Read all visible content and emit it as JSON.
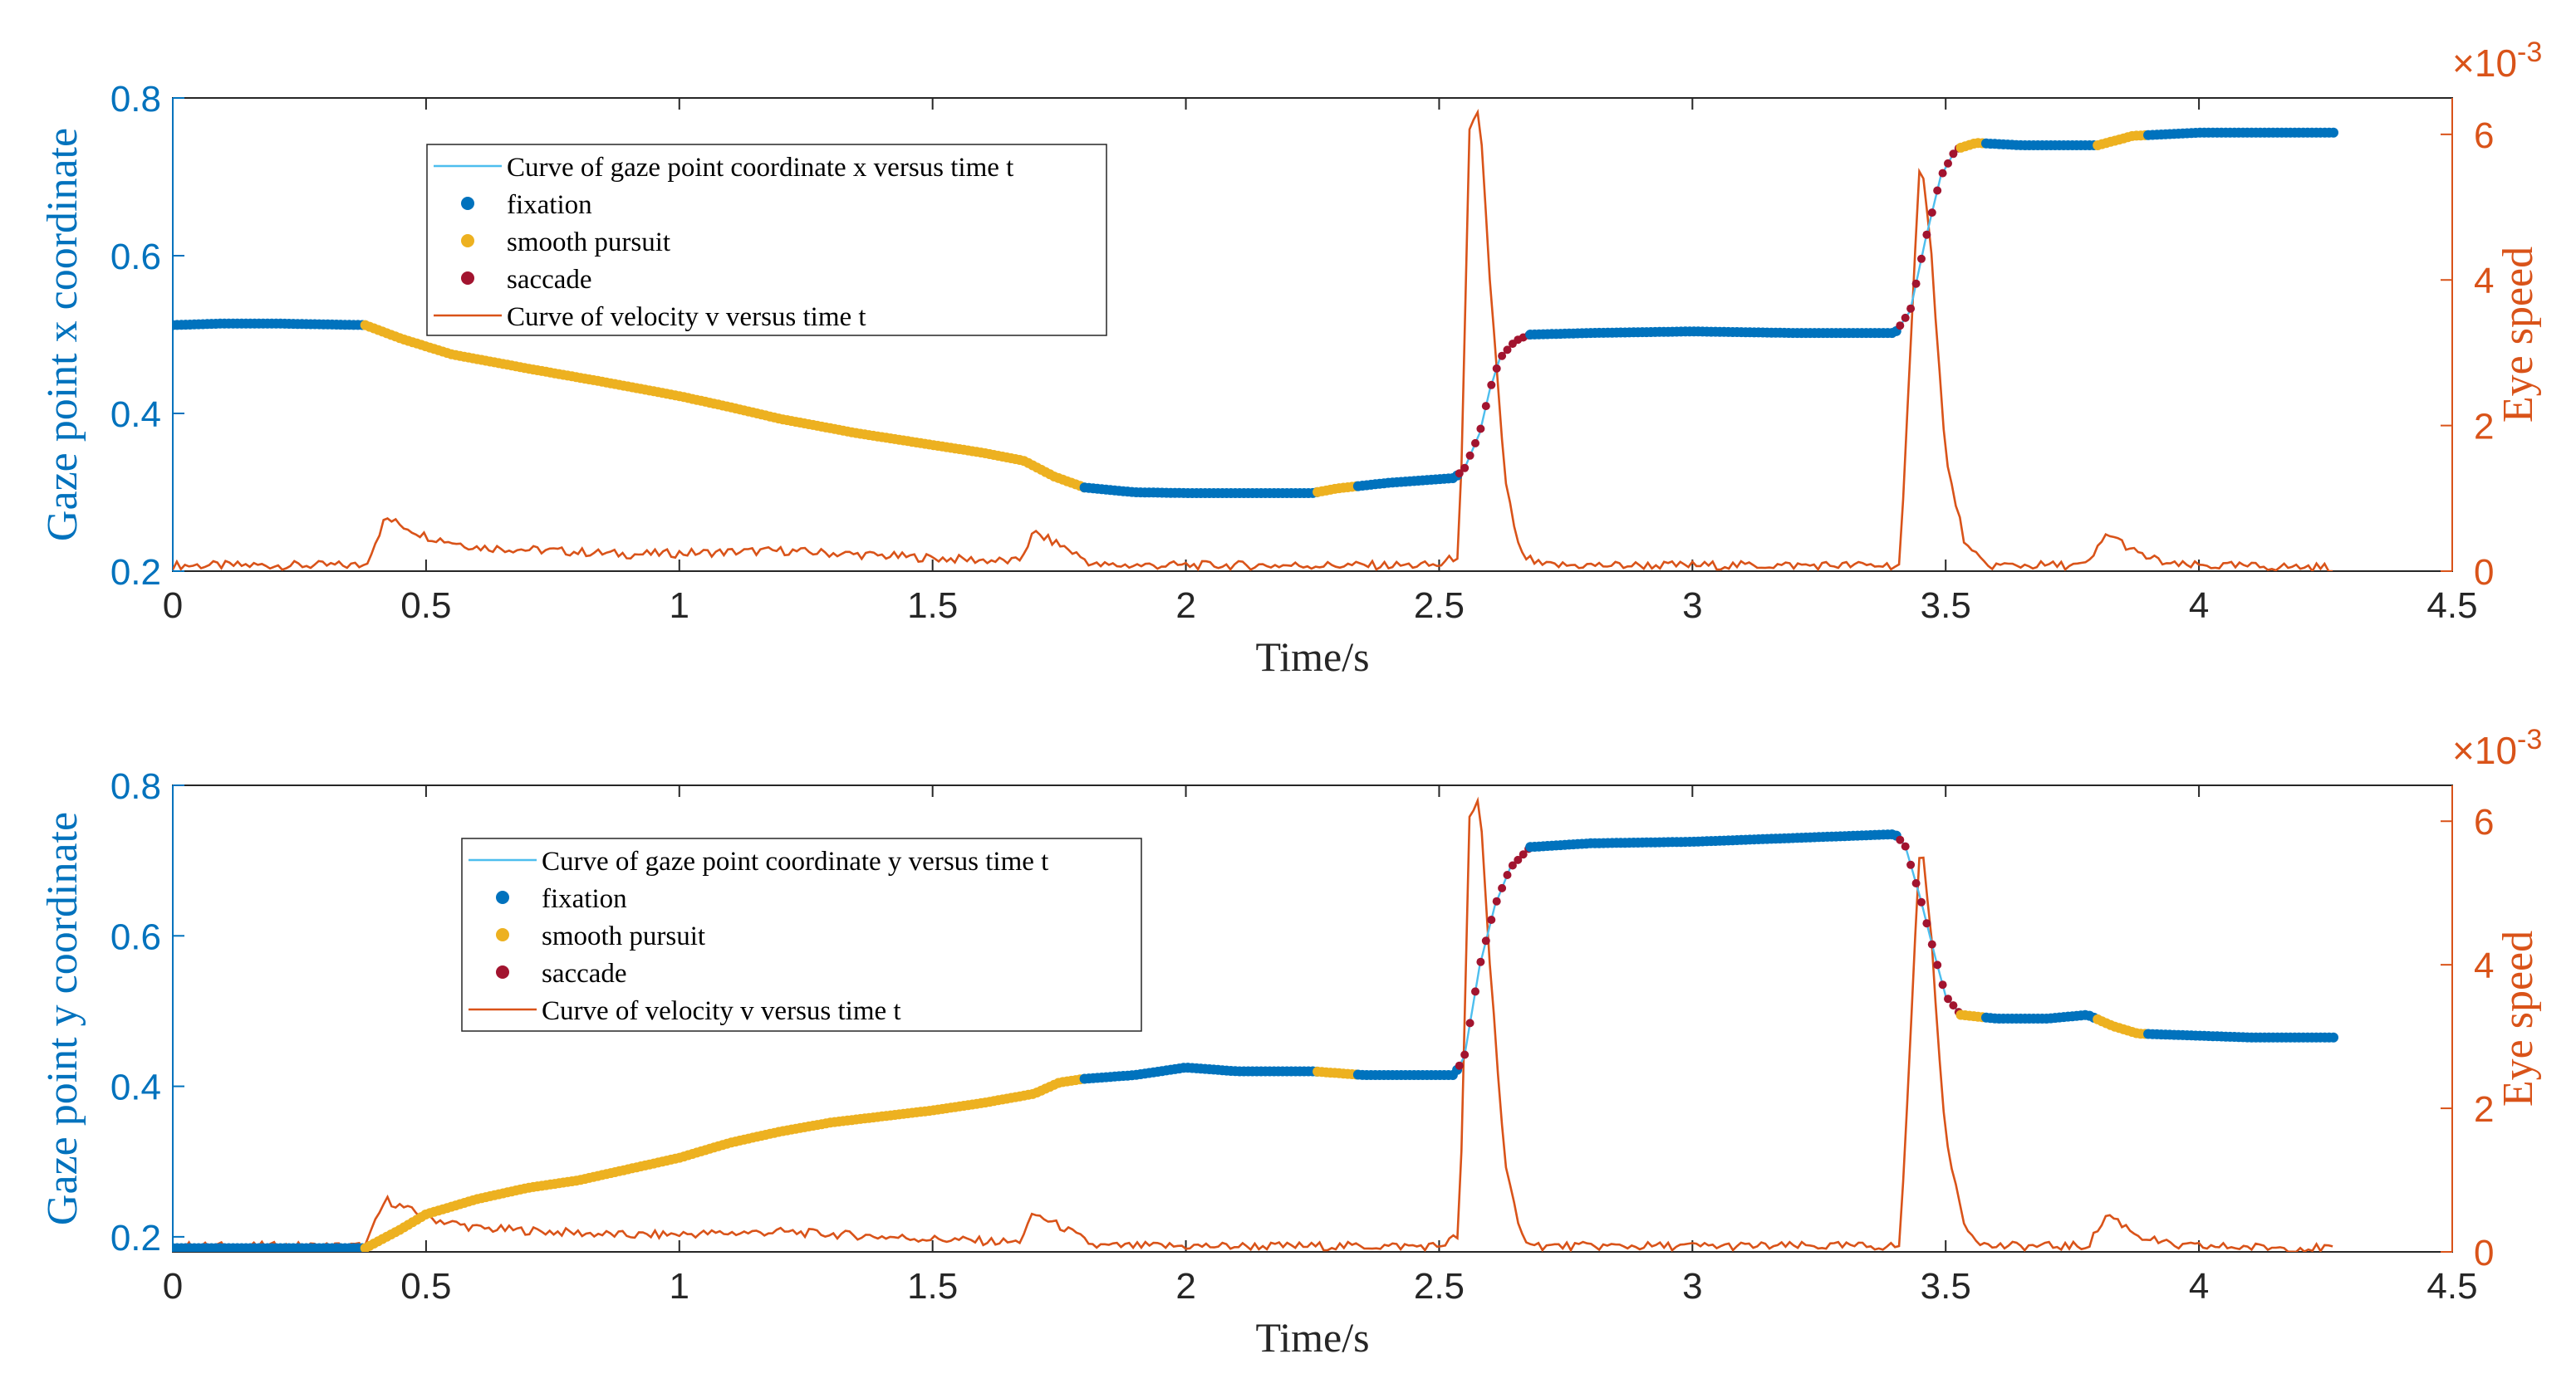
{
  "colors": {
    "fixation": "#0072BD",
    "smooth_pursuit": "#EDB120",
    "saccade": "#A2142F",
    "gaze_line": "#4DBEEE",
    "velocity": "#D95319",
    "left_axis": "#0072BD",
    "right_axis": "#D95319",
    "axis_frame": "#262626"
  },
  "chart_data": [
    {
      "id": "top",
      "type": "line",
      "xlabel": "Time/s",
      "ylabel_left": "Gaze point x coordinate",
      "ylabel_right": "Eye speed",
      "right_exponent": {
        "base": "×10",
        "exp": "-3"
      },
      "xlim": [
        0,
        4.5
      ],
      "ylim_left": [
        0.2,
        0.8
      ],
      "ylim_right": [
        0,
        6.5
      ],
      "xticks": [
        "0",
        "0.5",
        "1",
        "1.5",
        "2",
        "2.5",
        "3",
        "3.5",
        "4",
        "4.5"
      ],
      "yticks_left": [
        "0.2",
        "0.4",
        "0.6",
        "0.8"
      ],
      "yticks_right": [
        "0",
        "2",
        "4",
        "6"
      ],
      "legend": [
        "Curve of gaze point coordinate x versus time t",
        "fixation",
        "smooth pursuit",
        "saccade",
        "Curve of velocity v versus time t"
      ],
      "gaze_keypoints": [
        [
          0,
          0.512
        ],
        [
          0.1,
          0.514
        ],
        [
          0.2,
          0.514
        ],
        [
          0.38,
          0.512
        ],
        [
          0.45,
          0.495
        ],
        [
          0.55,
          0.475
        ],
        [
          0.7,
          0.457
        ],
        [
          0.85,
          0.44
        ],
        [
          1.0,
          0.422
        ],
        [
          1.1,
          0.408
        ],
        [
          1.2,
          0.393
        ],
        [
          1.35,
          0.375
        ],
        [
          1.5,
          0.36
        ],
        [
          1.6,
          0.35
        ],
        [
          1.68,
          0.34
        ],
        [
          1.74,
          0.32
        ],
        [
          1.8,
          0.306
        ],
        [
          1.9,
          0.3
        ],
        [
          2.0,
          0.299
        ],
        [
          2.25,
          0.299
        ],
        [
          2.3,
          0.305
        ],
        [
          2.4,
          0.312
        ],
        [
          2.53,
          0.318
        ],
        [
          2.55,
          0.33
        ],
        [
          2.58,
          0.375
        ],
        [
          2.6,
          0.43
        ],
        [
          2.62,
          0.47
        ],
        [
          2.65,
          0.492
        ],
        [
          2.68,
          0.5
        ],
        [
          2.8,
          0.502
        ],
        [
          3.0,
          0.504
        ],
        [
          3.2,
          0.502
        ],
        [
          3.4,
          0.502
        ],
        [
          3.43,
          0.53
        ],
        [
          3.46,
          0.62
        ],
        [
          3.49,
          0.7
        ],
        [
          3.52,
          0.735
        ],
        [
          3.56,
          0.743
        ],
        [
          3.65,
          0.74
        ],
        [
          3.8,
          0.74
        ],
        [
          3.87,
          0.752
        ],
        [
          4.0,
          0.756
        ],
        [
          4.27,
          0.756
        ]
      ],
      "segments": [
        [
          0,
          0.38,
          "fixation"
        ],
        [
          0.38,
          1.8,
          "smooth_pursuit"
        ],
        [
          1.8,
          2.26,
          "fixation"
        ],
        [
          2.26,
          2.34,
          "smooth_pursuit"
        ],
        [
          2.34,
          2.54,
          "fixation"
        ],
        [
          2.54,
          2.68,
          "saccade"
        ],
        [
          2.68,
          3.41,
          "fixation"
        ],
        [
          3.41,
          3.53,
          "saccade"
        ],
        [
          3.53,
          3.58,
          "smooth_pursuit"
        ],
        [
          3.58,
          3.8,
          "fixation"
        ],
        [
          3.8,
          3.9,
          "smooth_pursuit"
        ],
        [
          3.9,
          4.27,
          "fixation"
        ]
      ],
      "velocity_keypoints": [
        [
          0,
          0.05
        ],
        [
          0.38,
          0.05
        ],
        [
          0.42,
          0.7
        ],
        [
          0.5,
          0.45
        ],
        [
          0.6,
          0.3
        ],
        [
          0.9,
          0.2
        ],
        [
          1.2,
          0.25
        ],
        [
          1.5,
          0.15
        ],
        [
          1.67,
          0.1
        ],
        [
          1.7,
          0.5
        ],
        [
          1.76,
          0.3
        ],
        [
          1.82,
          0.05
        ],
        [
          2.5,
          0.05
        ],
        [
          2.54,
          0.2
        ],
        [
          2.56,
          6.0
        ],
        [
          2.58,
          6.3
        ],
        [
          2.6,
          4.0
        ],
        [
          2.63,
          1.2
        ],
        [
          2.66,
          0.2
        ],
        [
          2.7,
          0.05
        ],
        [
          3.41,
          0.05
        ],
        [
          3.45,
          5.8
        ],
        [
          3.47,
          4.5
        ],
        [
          3.5,
          1.5
        ],
        [
          3.54,
          0.3
        ],
        [
          3.58,
          0.05
        ],
        [
          3.78,
          0.05
        ],
        [
          3.82,
          0.5
        ],
        [
          3.88,
          0.2
        ],
        [
          3.95,
          0.05
        ],
        [
          4.27,
          0.02
        ]
      ]
    },
    {
      "id": "bottom",
      "type": "line",
      "xlabel": "Time/s",
      "ylabel_left": "Gaze point y coordinate",
      "ylabel_right": "Eye speed",
      "right_exponent": {
        "base": "×10",
        "exp": "-3"
      },
      "xlim": [
        0,
        4.5
      ],
      "ylim_left": [
        0.18,
        0.8
      ],
      "ylim_right": [
        0,
        6.5
      ],
      "xticks": [
        "0",
        "0.5",
        "1",
        "1.5",
        "2",
        "2.5",
        "3",
        "3.5",
        "4",
        "4.5"
      ],
      "yticks_left": [
        "0.2",
        "0.4",
        "0.6",
        "0.8"
      ],
      "yticks_right": [
        "0",
        "2",
        "4",
        "6"
      ],
      "legend": [
        "Curve of gaze point coordinate y versus time t",
        "fixation",
        "smooth pursuit",
        "saccade",
        "Curve of velocity v versus time t"
      ],
      "gaze_keypoints": [
        [
          0,
          0.185
        ],
        [
          0.38,
          0.185
        ],
        [
          0.45,
          0.21
        ],
        [
          0.5,
          0.23
        ],
        [
          0.6,
          0.25
        ],
        [
          0.7,
          0.265
        ],
        [
          0.8,
          0.275
        ],
        [
          0.9,
          0.29
        ],
        [
          1.0,
          0.305
        ],
        [
          1.1,
          0.325
        ],
        [
          1.2,
          0.34
        ],
        [
          1.3,
          0.352
        ],
        [
          1.4,
          0.36
        ],
        [
          1.5,
          0.368
        ],
        [
          1.6,
          0.378
        ],
        [
          1.7,
          0.39
        ],
        [
          1.75,
          0.405
        ],
        [
          1.8,
          0.41
        ],
        [
          1.9,
          0.415
        ],
        [
          2.0,
          0.425
        ],
        [
          2.1,
          0.42
        ],
        [
          2.25,
          0.42
        ],
        [
          2.35,
          0.415
        ],
        [
          2.53,
          0.415
        ],
        [
          2.55,
          0.44
        ],
        [
          2.58,
          0.56
        ],
        [
          2.61,
          0.64
        ],
        [
          2.64,
          0.69
        ],
        [
          2.68,
          0.718
        ],
        [
          2.8,
          0.723
        ],
        [
          3.0,
          0.725
        ],
        [
          3.2,
          0.73
        ],
        [
          3.4,
          0.735
        ],
        [
          3.42,
          0.72
        ],
        [
          3.45,
          0.65
        ],
        [
          3.48,
          0.57
        ],
        [
          3.5,
          0.52
        ],
        [
          3.53,
          0.495
        ],
        [
          3.6,
          0.49
        ],
        [
          3.7,
          0.49
        ],
        [
          3.78,
          0.495
        ],
        [
          3.83,
          0.48
        ],
        [
          3.88,
          0.47
        ],
        [
          4.1,
          0.465
        ],
        [
          4.27,
          0.465
        ]
      ],
      "segments": [
        [
          0,
          0.38,
          "fixation"
        ],
        [
          0.38,
          1.8,
          "smooth_pursuit"
        ],
        [
          1.8,
          2.26,
          "fixation"
        ],
        [
          2.26,
          2.34,
          "smooth_pursuit"
        ],
        [
          2.34,
          2.54,
          "fixation"
        ],
        [
          2.54,
          2.68,
          "saccade"
        ],
        [
          2.68,
          3.41,
          "fixation"
        ],
        [
          3.41,
          3.53,
          "saccade"
        ],
        [
          3.53,
          3.58,
          "smooth_pursuit"
        ],
        [
          3.58,
          3.8,
          "fixation"
        ],
        [
          3.8,
          3.9,
          "smooth_pursuit"
        ],
        [
          3.9,
          4.27,
          "fixation"
        ]
      ],
      "velocity_keypoints": [
        [
          0,
          0.05
        ],
        [
          0.38,
          0.05
        ],
        [
          0.42,
          0.7
        ],
        [
          0.5,
          0.45
        ],
        [
          0.6,
          0.3
        ],
        [
          0.9,
          0.2
        ],
        [
          1.2,
          0.25
        ],
        [
          1.5,
          0.15
        ],
        [
          1.67,
          0.1
        ],
        [
          1.7,
          0.5
        ],
        [
          1.76,
          0.3
        ],
        [
          1.82,
          0.05
        ],
        [
          2.5,
          0.05
        ],
        [
          2.54,
          0.2
        ],
        [
          2.56,
          6.0
        ],
        [
          2.58,
          6.3
        ],
        [
          2.6,
          4.0
        ],
        [
          2.63,
          1.2
        ],
        [
          2.66,
          0.2
        ],
        [
          2.7,
          0.05
        ],
        [
          3.41,
          0.05
        ],
        [
          3.45,
          5.8
        ],
        [
          3.47,
          4.5
        ],
        [
          3.5,
          1.5
        ],
        [
          3.54,
          0.3
        ],
        [
          3.58,
          0.05
        ],
        [
          3.78,
          0.05
        ],
        [
          3.82,
          0.5
        ],
        [
          3.88,
          0.2
        ],
        [
          3.95,
          0.05
        ],
        [
          4.27,
          0.02
        ]
      ]
    }
  ]
}
